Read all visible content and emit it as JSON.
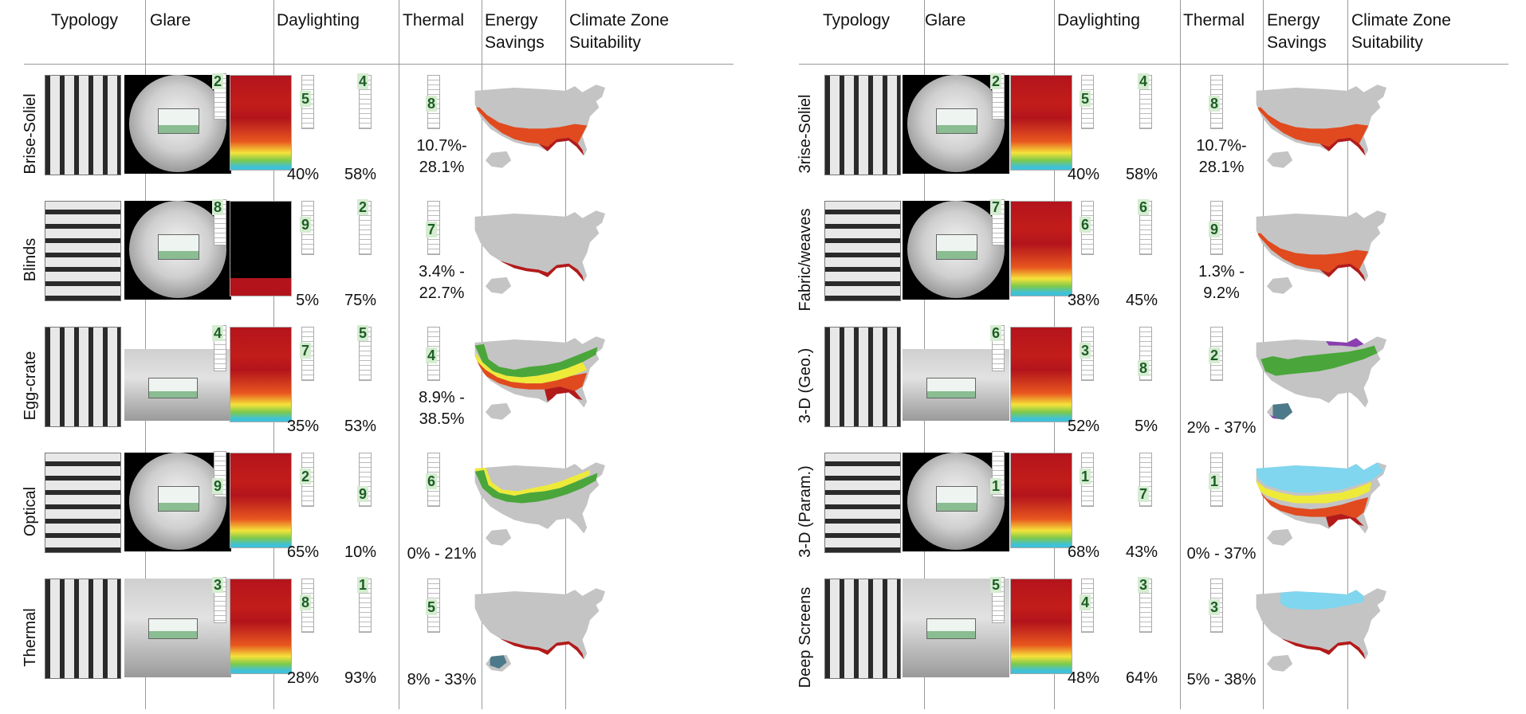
{
  "headers": {
    "typology": "Typology",
    "glare": "Glare",
    "daylighting": "Daylighting",
    "thermal": "Thermal",
    "energy_line1": "Energy",
    "energy_line2": "Savings",
    "climate_line1": "Climate Zone",
    "climate_line2": "Suitability"
  },
  "colors": {
    "heat_red": "#b3141c",
    "heat_orange": "#e8571f",
    "heat_yellow": "#f5e33a",
    "heat_green": "#7ec94b",
    "heat_cyan": "#3fc1d8",
    "map_gray": "#c4c4c4",
    "zone_red": "#b31a1a",
    "zone_orange": "#e04a1e",
    "zone_yellow": "#eeea3a",
    "zone_green": "#4aa63a",
    "zone_cyan": "#7fd6ee",
    "zone_purple": "#8a3fb0",
    "zone_slate": "#4d7a8a",
    "score_green": "#1d5e26"
  },
  "left_rows": [
    {
      "typology": "Brise-Soliel",
      "glare_score": "2",
      "daylight_score": "5",
      "daylight_pct": "40%",
      "thermal_score": "4",
      "thermal_pct": "58%",
      "energy_score": "8",
      "energy_range_line1": "10.7%-",
      "energy_range_line2": "28.1%"
    },
    {
      "typology": "Blinds",
      "glare_score": "8",
      "daylight_score": "9",
      "daylight_pct": "5%",
      "thermal_score": "2",
      "thermal_pct": "75%",
      "energy_score": "7",
      "energy_range_line1": "3.4% -",
      "energy_range_line2": "22.7%"
    },
    {
      "typology": "Egg-crate",
      "glare_score": "4",
      "daylight_score": "7",
      "daylight_pct": "35%",
      "thermal_score": "5",
      "thermal_pct": "53%",
      "energy_score": "4",
      "energy_range_line1": "8.9% -",
      "energy_range_line2": "38.5%"
    },
    {
      "typology": "Optical",
      "glare_score": "9",
      "daylight_score": "2",
      "daylight_pct": "65%",
      "thermal_score": "9",
      "thermal_pct": "10%",
      "energy_score": "6",
      "energy_range_line1": "0% - 21%",
      "energy_range_line2": ""
    },
    {
      "typology": "Thermal",
      "glare_score": "3",
      "daylight_score": "8",
      "daylight_pct": "28%",
      "thermal_score": "1",
      "thermal_pct": "93%",
      "energy_score": "5",
      "energy_range_line1": "8% - 33%",
      "energy_range_line2": ""
    }
  ],
  "right_rows": [
    {
      "typology": "3rise-Soliel",
      "glare_score": "2",
      "daylight_score": "5",
      "daylight_pct": "40%",
      "thermal_score": "4",
      "thermal_pct": "58%",
      "energy_score": "8",
      "energy_range_line1": "10.7%-",
      "energy_range_line2": "28.1%"
    },
    {
      "typology": "Fabric/weaves",
      "glare_score": "7",
      "daylight_score": "6",
      "daylight_pct": "38%",
      "thermal_score": "6",
      "thermal_pct": "45%",
      "energy_score": "9",
      "energy_range_line1": "1.3% -",
      "energy_range_line2": "9.2%"
    },
    {
      "typology": "3-D (Geo.)",
      "glare_score": "6",
      "daylight_score": "3",
      "daylight_pct": "52%",
      "thermal_score": "8",
      "thermal_pct": "5%",
      "energy_score": "2",
      "energy_range_line1": "2% - 37%",
      "energy_range_line2": ""
    },
    {
      "typology": "3-D (Param.)",
      "glare_score": "1",
      "daylight_score": "1",
      "daylight_pct": "68%",
      "thermal_score": "7",
      "thermal_pct": "43%",
      "energy_score": "1",
      "energy_range_line1": "0% - 37%",
      "energy_range_line2": ""
    },
    {
      "typology": "Deep Screens",
      "glare_score": "5",
      "daylight_score": "4",
      "daylight_pct": "48%",
      "thermal_score": "3",
      "thermal_pct": "64%",
      "energy_score": "3",
      "energy_range_line1": "5% - 38%",
      "energy_range_line2": ""
    }
  ]
}
